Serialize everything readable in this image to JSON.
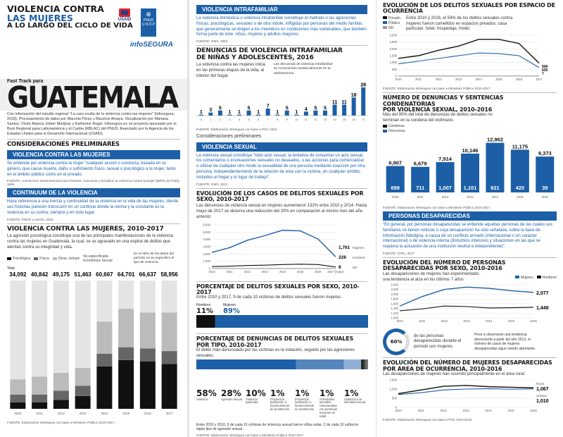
{
  "cover": {
    "title_line1": "VIOLENCIA CONTRA",
    "title_line2": "LAS MUJERES",
    "title_line3": "A LO LARGO DEL CICLO DE VIDA",
    "usaid": "USAID",
    "undp_a": "PNUD",
    "undp_b": "U N D P",
    "infosegura": "infoSEGURA",
    "fast_track": "Fast Track para",
    "country": "GUATEMALA",
    "credits": "Con información del estudio regional \"La cara oculta de la violencia contra las mujeres\" (Infosegura, 2018). Procesamiento de datos por Marcela Pérez y Mauricio Amaya. Visualización por Mariana Santos, Víctor Abarca, Elmer Monjivar y Katherine Rogel. Infosegura es un proyecto ejecutado por el Buró Regional para Latinoamérica y el Caribe (RBLAC) del PNUD, financiado por la Agencia de los Estados Unidos para el Desarrollo Internacional (USAID)."
  },
  "c1": {
    "prelim": "Consideraciones preliminares",
    "vcm_bar": "VIOLENCIA CONTRA LAS MUJERES",
    "vcm_text": "Se entiende por violencia contra la mujer \"cualquier acción o conducta, basada en su género, que cause muerte, daño o sufrimiento físico, sexual o psicológico a la mujer, tanto en el ámbito público como en el privado.",
    "vcm_src": "FUENTE: Convención Interamericana para Prevenir, Sancionar y Erradicar la Violencia Contra la Mujer (Belém do Pará), 1994.",
    "cont_bar": "CONTINUUM DE LA VIOLENCIA",
    "cont_text": "Hace referencia a una inercia y continuidad de la violencia en la vida de las mujeres, donde sus historias parecen transcurrir en un continuo donde la norma y la constante es la violencia en su contra, siempre y en todo lugar.",
    "cont_src": "FUENTE: PNUD y USAID, 2016",
    "chart_title": "VIOLENCIA CONTRA LAS MUJERES, 2010-2017",
    "chart_text": "La agresión psicológica constituye una de las principales manifestaciones de la violencia contra las mujeres en Guatemala, la cual, se se agravado en una espiral de delitos que atentan contra su integridad y vida.",
    "legend": [
      "Psicológica",
      "Física",
      "Otras, incluye",
      "No especificada Económica Sexual"
    ],
    "note": "En el 48% de los datos del período no se especificó el tipo de violencia.",
    "total_label": "Total",
    "chart_src": "FUENTE: Elaboración Infosegura con base a Ministerio Público 2010-2017."
  },
  "c2": {
    "vif_bar": "VIOLENCIA INTRAFAMILIAR",
    "vif_text": "La violencia doméstica o violencia intrafamiliar constituye el maltrato o las agresiones físicas, psicológicas, sexuales o de otra índole, infligidas por personas del medio familiar, que generalmente se dirigen a los miembros en condiciones más vulnerables, que también forma parte de éste: niñas, mujeres y adultos mayores.",
    "vif_src": "FUENTE: OMS, 2002",
    "den_title_a": "DENUNCIAS DE VIOLENCIA INTRAFAMILIAR",
    "den_title_b": "DE NIÑAS Y ADOLESCENTES, 2016",
    "den_text": "La violencia contra las mujeres inicia en las primeras etapas de la vida, al interior del hogar.",
    "den_note": "Las denuncias de violencia intrafamiliar se incrementan sustancialmente en la adolescencia.",
    "den_src": "FUENTE: Elaboración Infosegura con base a PNC 2016",
    "prelim": "Consideraciones preliminares",
    "vs_bar": "VIOLENCIA SEXUAL",
    "vs_text": "La violencia sexual constituye \"todo acto sexual, la tentativa de consumar un acto sexual, los comentarios o insinuaciones sexuales no deseados, o las acciones para comercializar o utilizar de cualquier otro modo la sexualidad de una persona mediante coacción por otra persona, independientemente de la relación de esta con la víctima, en cualquier ámbito, incluidos el hogar y el lugar de trabajo\".",
    "vs_src": "FUENTE: OMS, 2013",
    "evo_title": "EVOLUCIÓN DE LOS CASOS DE DELITOS SEXUALES POR SEXO, 2010-2017",
    "evo_text": "Las denuncias de violencia sexual en mujeres aumentaron 132% entre 2010 y 2014. Hasta mayo de 2017 se observa una reducción del 20% en comparación al mismo mes del año anterior.",
    "evo_end_women": "1,761",
    "evo_end_women_label": "Mujeres",
    "evo_end_men": "228",
    "evo_end_men_label": "Hombres",
    "evo_end_nd": "8",
    "evo_end_nd_label": "ND",
    "pct_title": "PORCENTAJE DE DELITOS SEXUALES POR SEXO, 2010-2017",
    "pct_text": "Entre 2010 y 2017, 9 de cada 10 víctimas de delitos sexuales fueron mujeres.",
    "pct_men_label": "Hombres",
    "pct_women_label": "Mujeres",
    "pct_men": "11%",
    "pct_women": "89%",
    "tipo_title": "PORCENTAJE DE DENUNCIAS DE DELITOS SEXUALES POR TIPO, 2010-2017",
    "tipo_text": "El delito más denunciado por las víctimas es la violación, seguido por las agresiones sexuales.",
    "tipo_foot": "Entre 2010 y 2016, 5 de cada 10 víctimas de violencia sexual fueron niñas solas. 2 de cada 10 sufrieron algún tipo de agresión sexual.",
    "tipo_src": "FUENTE: Elaboración Infosegura con base a Ministerio Público 2010-2017"
  },
  "c3": {
    "esp_title": "EVOLUCIÓN DE LOS DELITOS SEXUALES POR ESPACIO DE OCURRENCIA",
    "esp_legend": [
      "Privado",
      "Público",
      "ND"
    ],
    "esp_text": "Entre 2010 y 2016, el 54% de los delitos sexuales contra mujeres fueron cometidos en espacios privados: casa particular, hotel, hospedaje, motel.",
    "esp_end": [
      "949",
      "635",
      "7"
    ],
    "esp_src": "FUENTE: Elaboración Infosegura con base a Ministerio Público 2010-2017.",
    "cond_title_a": "NÚMERO DE DENUNCIAS Y SENTENCIAS CONDENATORIAS",
    "cond_title_b": "POR VIOLENCIA SEXUAL, 2010-2016",
    "cond_text": "Más del 90% del total de denuncias de delitos sexuales no terminan en la condena del victimario.",
    "cond_legend": [
      "Condenas",
      "Denuncias"
    ],
    "cond_src": "FUENTE: Elaboración Infosegura con base a Ministerio Público 2010-2017.",
    "desap_bar": "PERSONAS DESAPARECIDAS",
    "desap_text": "\"En general, por personas desaparecidas se entiende aquellas personas de las cuales sus familiares no tienen noticias o cuya desaparición ha sido señalada, sobre la base de información fidedigna, a causa de un conflicto armado (internacional o sin carácter internacional) o de violencia interna (disturbios interiores y situaciones en las que se requiera la actuación de una institución neutral e independiente)\".",
    "desap_src": "FUENTE: ICRC, 2017",
    "dsexo_title": "EVOLUCIÓN DEL NÚMERO DE PERSONAS DESAPARECIDAS POR SEXO, 2010-2016",
    "dsexo_text": "Las desapariciones de mujeres han experimentado una tendencia al alza en los últimos 7 años",
    "dsexo_legend": [
      "Mujeres",
      "Hombres"
    ],
    "dsexo_end": [
      "2,077",
      "1,449"
    ],
    "pct60": "60%",
    "pct60_text": "de las personas desaparecidas durante el período son mujeres.",
    "pct60_note": "Pese a observarse una tendencia decreciente a partir del año 2013, el número de casos de mujeres desaparecidas sigue siendo alarmante.",
    "darea_title_a": "Evolución del número de mujeres desaparecidas",
    "darea_title_b": "por área de ocurrencia, 2010-2016",
    "darea_text": "Las desapariciones de mujeres han ocurrido principalmente en el área rural.",
    "darea_end": [
      "Rural",
      "1,067",
      "Urbana",
      "1,010"
    ],
    "darea_src": "FUENTE: Elaboración Infosegura con base a PNC 2010-2016"
  },
  "chart_data": [
    {
      "type": "bar",
      "title": "VIOLENCIA CONTRA LAS MUJERES, 2010-2017",
      "categories": [
        "2010",
        "2011",
        "2012",
        "2013",
        "2014",
        "2015",
        "2016",
        "2017"
      ],
      "totals": [
        "34,092",
        "40,842",
        "49,175",
        "51,463",
        "60,667",
        "64,701",
        "66,637",
        "58,956"
      ],
      "series": [
        {
          "name": "Psicológica",
          "values": [
            0.05,
            0.05,
            0.07,
            0.1,
            0.33,
            0.38,
            0.37,
            0.35
          ]
        },
        {
          "name": "Física",
          "values": [
            0.06,
            0.06,
            0.07,
            0.08,
            0.1,
            0.1,
            0.1,
            0.1
          ]
        },
        {
          "name": "Otras, incluye",
          "values": [
            0.12,
            0.14,
            0.14,
            0.14,
            0.25,
            0.3,
            0.28,
            0.3
          ]
        },
        {
          "name": "No especificada Económica Sexual",
          "values": [
            0.77,
            0.75,
            0.72,
            0.68,
            0.32,
            0.22,
            0.25,
            0.25
          ]
        }
      ]
    },
    {
      "type": "bar",
      "title": "DENUNCIAS DE VIOLENCIA INTRAFAMILIAR DE NIÑAS Y ADOLESCENTES, 2016",
      "categories": [
        "0",
        "1",
        "2",
        "3",
        "4",
        "5",
        "6",
        "7",
        "8",
        "9",
        "10",
        "11",
        "12",
        "13",
        "14",
        "15",
        "16",
        "17"
      ],
      "values": [
        1,
        3,
        5,
        1,
        1,
        5,
        1,
        7,
        1,
        5,
        1,
        4,
        5,
        5,
        11,
        11,
        18,
        28
      ]
    },
    {
      "type": "line",
      "title": "EVOLUCIÓN DE LOS CASOS DE DELITOS SEXUALES POR SEXO, 2010-2017",
      "x": [
        "2010",
        "2011",
        "2012",
        "2013",
        "2014",
        "2015",
        "2016",
        "2017 (mayo)"
      ],
      "yticks": [
        "0",
        "1,000",
        "2,000",
        "3,000",
        "4,000",
        "5,000",
        "6,000"
      ],
      "ylim": [
        0,
        6500
      ],
      "series": [
        {
          "name": "Mujeres",
          "values": [
            2400,
            3100,
            4200,
            4900,
            5700,
            5600,
            4400,
            1761
          ]
        },
        {
          "name": "Hombres",
          "values": [
            300,
            350,
            450,
            500,
            600,
            650,
            600,
            228
          ]
        },
        {
          "name": "ND",
          "values": [
            8,
            8,
            8,
            8,
            8,
            8,
            8,
            8
          ]
        }
      ]
    },
    {
      "type": "bar",
      "title": "PORCENTAJE DE DENUNCIAS DE DELITOS SEXUALES POR TIPO, 2010-2017",
      "categories": [
        "Violación",
        "Agresión sexual",
        "Violación agravada",
        "Promoción, facilitación o favorecimiento de prostitución",
        "Promoción, facilitación o favorecimiento de prostitución",
        "Actividades sexuales remuneradas con personas menores de edad",
        "Violación a la intimidad sexual"
      ],
      "labels": [
        "58%",
        "28%",
        "10%",
        "1%",
        "1%",
        "1%",
        "1%"
      ],
      "values": [
        58,
        28,
        10,
        1,
        1,
        1,
        1
      ]
    },
    {
      "type": "line",
      "title": "EVOLUCIÓN DE LOS DELITOS SEXUALES POR ESPACIO DE OCURRENCIA",
      "x": [
        "2010",
        "2011",
        "2012",
        "2013",
        "2014",
        "2015",
        "2016",
        "2017"
      ],
      "yticks": [
        "0",
        "500",
        "1,000",
        "1,500",
        "2,000",
        "2,500",
        "3,000"
      ],
      "ylim": [
        0,
        3000
      ],
      "series": [
        {
          "name": "Privado",
          "values": [
            1300,
            1500,
            1900,
            2200,
            2700,
            2700,
            2400,
            949
          ]
        },
        {
          "name": "Público",
          "values": [
            900,
            1100,
            1300,
            1500,
            1700,
            1650,
            1500,
            635
          ]
        },
        {
          "name": "ND",
          "values": [
            10,
            10,
            10,
            10,
            10,
            10,
            10,
            7
          ]
        }
      ]
    },
    {
      "type": "bar",
      "title": "NÚMERO DE DENUNCIAS Y SENTENCIAS CONDENATORIAS POR VIOLENCIA SEXUAL, 2010-2016",
      "categories": [
        "2010",
        "2011",
        "2012",
        "2013",
        "2014",
        "2015",
        "2016"
      ],
      "series": [
        {
          "name": "Denuncias",
          "values": [
            6907,
            6679,
            7914,
            10146,
            12962,
            11175,
            9373
          ],
          "labels": [
            "6,907",
            "6,679",
            "7,914",
            "10,146",
            "12,962",
            "11,175",
            "9,373"
          ]
        },
        {
          "name": "Condenas",
          "values": [
            699,
            711,
            1007,
            1101,
            921,
            420,
            39
          ],
          "labels": [
            "699",
            "711",
            "1,007",
            "1,101",
            "921",
            "420",
            "39"
          ]
        }
      ]
    },
    {
      "type": "line",
      "title": "EVOLUCIÓN DEL NÚMERO DE PERSONAS DESAPARECIDAS POR SEXO, 2010-2016",
      "x": [
        "2010",
        "2011",
        "2012",
        "2013",
        "2014",
        "2015",
        "2016"
      ],
      "yticks": [
        "1,000",
        "1,200",
        "1,400",
        "1,600",
        "1,800",
        "2,000",
        "2,200",
        "2,400"
      ],
      "ylim": [
        1000,
        2400
      ],
      "series": [
        {
          "name": "Mujeres",
          "values": [
            1500,
            1900,
            2200,
            2300,
            2250,
            2150,
            2077
          ]
        },
        {
          "name": "Hombres",
          "values": [
            1300,
            1380,
            1500,
            1480,
            1420,
            1430,
            1449
          ]
        }
      ]
    },
    {
      "type": "line",
      "title": "Evolución del número de mujeres desaparecidas por área de ocurrencia, 2010-2016",
      "x": [
        "2010",
        "2011",
        "2012",
        "2013",
        "2014",
        "2015",
        "2016"
      ],
      "yticks": [
        "0",
        "500",
        "1,000",
        "1,500"
      ],
      "ylim": [
        0,
        1500
      ],
      "series": [
        {
          "name": "Rural",
          "values": [
            750,
            950,
            1150,
            1200,
            1130,
            1100,
            1067
          ]
        },
        {
          "name": "Urbana",
          "values": [
            700,
            800,
            950,
            1000,
            1020,
            990,
            1010
          ]
        }
      ]
    }
  ]
}
